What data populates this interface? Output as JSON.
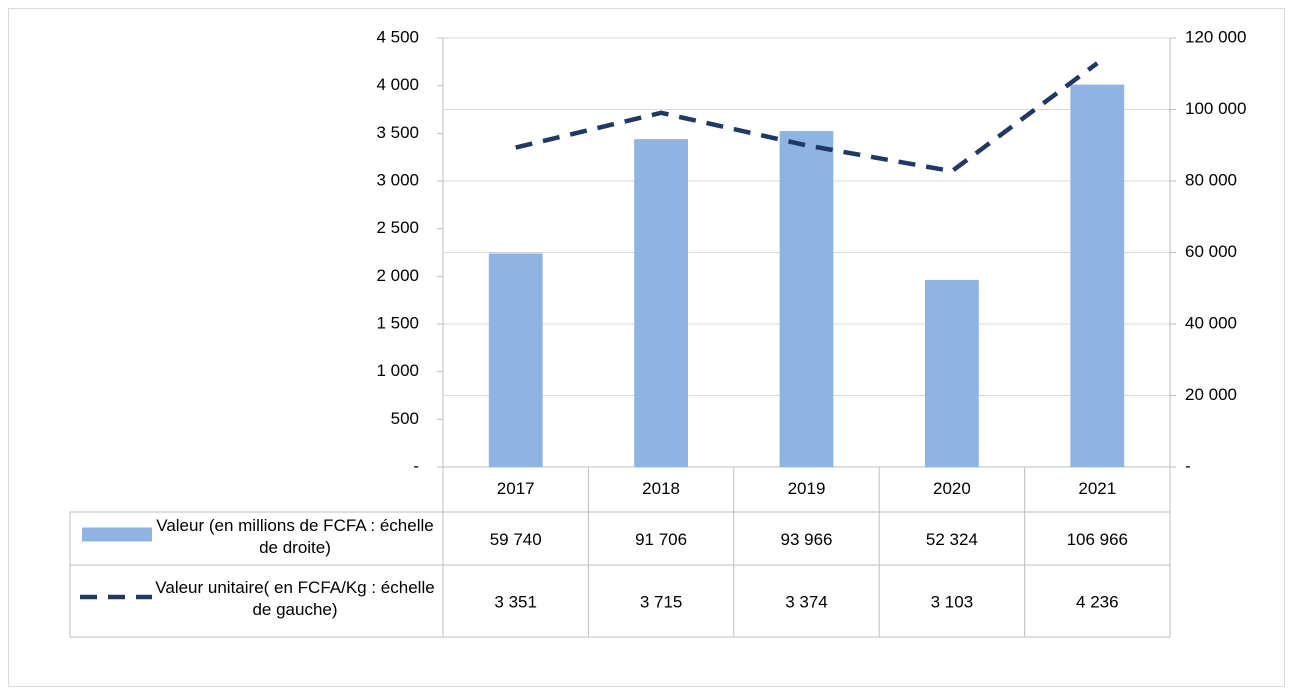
{
  "chart_data": {
    "type": "bar",
    "categories": [
      "2017",
      "2018",
      "2019",
      "2020",
      "2021"
    ],
    "series": [
      {
        "name": "Valeur (en millions de FCFA : échelle de droite)",
        "type": "bar",
        "axis": "y2",
        "color": "#8eb4e3",
        "values": [
          59740,
          91706,
          93966,
          52324,
          106966
        ],
        "value_labels": [
          "59 740",
          "91 706",
          "93 966",
          "52 324",
          "106 966"
        ]
      },
      {
        "name": "Valeur unitaire( en FCFA/Kg : échelle de gauche)",
        "type": "line",
        "axis": "y",
        "color": "#1f3864",
        "dashed": true,
        "values": [
          3351,
          3715,
          3374,
          3103,
          4236
        ],
        "value_labels": [
          "3 351",
          "3 715",
          "3 374",
          "3 103",
          "4 236"
        ]
      }
    ],
    "ylim": [
      0,
      4500
    ],
    "yticks": [
      {
        "value": 0,
        "label": "-"
      },
      500,
      {
        "value": 1000,
        "label": "1 000"
      },
      {
        "value": 1500,
        "label": "1 500"
      },
      {
        "value": 2000,
        "label": "2 000"
      },
      {
        "value": 2500,
        "label": "2 500"
      },
      {
        "value": 3000,
        "label": "3 000"
      },
      {
        "value": 3500,
        "label": "3 500"
      },
      {
        "value": 4000,
        "label": "4 000"
      },
      {
        "value": 4500,
        "label": "4 500"
      }
    ],
    "y2lim": [
      0,
      120000
    ],
    "y2ticks": [
      {
        "value": 0,
        "label": "-"
      },
      {
        "value": 20000,
        "label": "20 000"
      },
      {
        "value": 40000,
        "label": "40 000"
      },
      {
        "value": 60000,
        "label": "60 000"
      },
      {
        "value": 80000,
        "label": "80 000"
      },
      {
        "value": 100000,
        "label": "100 000"
      },
      {
        "value": 120000,
        "label": "120 000"
      }
    ],
    "grid": true,
    "data_table": true
  }
}
